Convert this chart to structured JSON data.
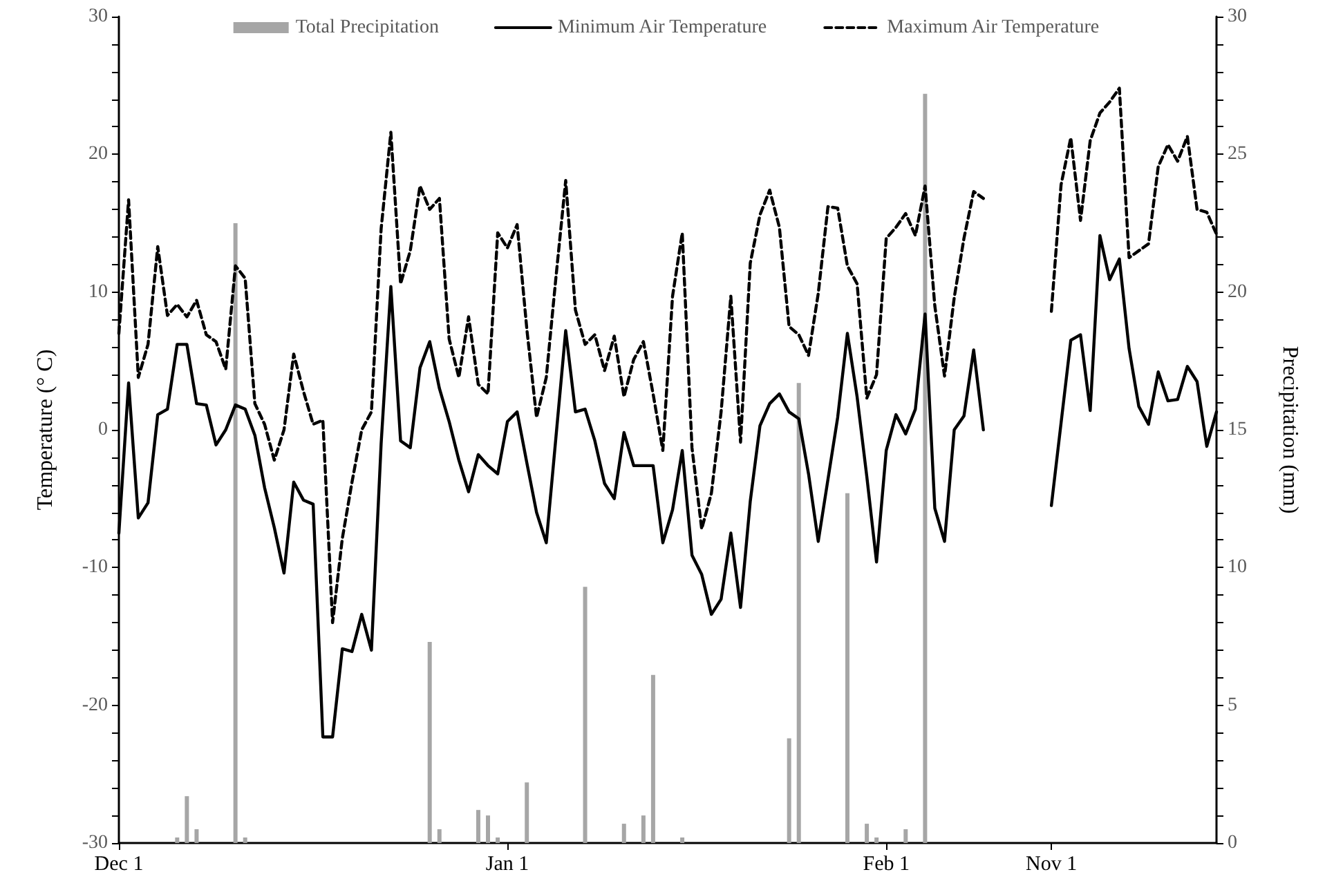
{
  "chart_data": {
    "type": "line",
    "ylabel": "Temperature (° C)",
    "y2label": "Precipitation (mm)",
    "categories": [
      "Dec 1",
      null,
      null,
      null,
      null,
      null,
      null,
      null,
      null,
      null,
      null,
      null,
      null,
      null,
      null,
      null,
      null,
      null,
      null,
      null,
      null,
      null,
      null,
      null,
      null,
      null,
      null,
      null,
      null,
      null,
      null,
      null,
      null,
      null,
      null,
      null,
      null,
      null,
      null,
      null,
      "Jan 1",
      null,
      null,
      null,
      null,
      null,
      null,
      null,
      null,
      null,
      null,
      null,
      null,
      null,
      null,
      null,
      null,
      null,
      null,
      null,
      null,
      null,
      null,
      null,
      null,
      null,
      null,
      null,
      null,
      null,
      null,
      null,
      null,
      null,
      null,
      null,
      null,
      null,
      null,
      "Feb 1",
      null,
      null,
      null,
      null,
      null,
      null,
      null,
      null,
      null,
      null,
      null,
      null,
      null,
      null,
      null,
      null,
      "Nov 1",
      null,
      null,
      null,
      null,
      null,
      null,
      null,
      null,
      null,
      null,
      null,
      null,
      null,
      null,
      null,
      null,
      null
    ],
    "series": [
      {
        "name": "Total Precipitation",
        "type": "bar",
        "axis": "y2",
        "color": "#a6a6a6",
        "values": [
          null,
          null,
          null,
          null,
          null,
          null,
          0.2,
          1.7,
          0.5,
          null,
          null,
          null,
          22.5,
          0.2,
          null,
          null,
          null,
          null,
          null,
          null,
          null,
          null,
          null,
          null,
          null,
          null,
          null,
          null,
          null,
          null,
          null,
          null,
          7.3,
          0.5,
          null,
          null,
          null,
          1.2,
          1.0,
          0.2,
          null,
          null,
          2.2,
          null,
          null,
          null,
          null,
          null,
          9.3,
          null,
          null,
          null,
          0.7,
          null,
          1.0,
          6.1,
          null,
          null,
          0.2,
          null,
          null,
          null,
          null,
          null,
          null,
          null,
          null,
          null,
          null,
          3.8,
          16.7,
          null,
          null,
          null,
          null,
          12.7,
          null,
          0.7,
          0.2,
          null,
          null,
          0.5,
          null,
          27.2,
          null,
          null,
          null,
          null,
          null,
          null,
          null,
          null,
          null,
          null,
          null,
          null,
          null,
          null,
          null,
          null,
          null,
          null,
          null,
          null,
          null,
          null,
          null,
          null,
          null,
          null,
          null,
          null,
          null,
          null
        ]
      },
      {
        "name": "Minimum Air Temperature",
        "color": "#000000",
        "line_style": "solid",
        "values": [
          -7.5,
          3.4,
          -6.4,
          -5.3,
          1.1,
          1.5,
          6.2,
          6.2,
          1.9,
          1.8,
          -1.1,
          0.0,
          1.8,
          1.5,
          -0.4,
          -4.2,
          -7.1,
          -10.4,
          -3.8,
          -5.1,
          -5.4,
          -22.3,
          -22.3,
          -15.9,
          -16.1,
          -13.4,
          -16.0,
          -1.0,
          10.4,
          -0.8,
          -1.3,
          4.5,
          6.4,
          3.0,
          0.6,
          -2.2,
          -4.5,
          -1.8,
          -2.6,
          -3.2,
          0.6,
          1.3,
          -2.4,
          -6.0,
          -8.2,
          -0.5,
          7.2,
          1.3,
          1.5,
          -0.8,
          -3.9,
          -5.0,
          -0.2,
          -2.6,
          -2.6,
          -2.6,
          -8.2,
          -5.8,
          -1.5,
          -9.1,
          -10.5,
          -13.4,
          -12.3,
          -7.5,
          -12.9,
          -5.2,
          0.3,
          1.9,
          2.6,
          1.3,
          0.8,
          -3.2,
          -8.1,
          -3.6,
          0.9,
          7.0,
          2.4,
          -3.4,
          -9.6,
          -1.5,
          1.1,
          -0.3,
          1.5,
          8.4,
          -5.7,
          -8.1,
          0.0,
          1.0,
          5.8,
          0.0,
          null,
          null,
          null,
          null,
          null,
          null,
          -5.5,
          0.5,
          6.5,
          6.9,
          1.4,
          14.1,
          10.9,
          12.4,
          5.9,
          1.7,
          0.4,
          4.2,
          2.1,
          2.2,
          4.6,
          3.5,
          -1.2,
          1.3
        ]
      },
      {
        "name": "Maximum Air Temperature",
        "color": "#000000",
        "line_style": "dashed",
        "values": [
          7.0,
          16.7,
          3.8,
          6.2,
          13.3,
          8.3,
          9.1,
          8.2,
          9.4,
          6.9,
          6.4,
          4.4,
          11.9,
          11.0,
          1.9,
          0.4,
          -2.2,
          0.0,
          5.5,
          2.8,
          0.4,
          0.7,
          -14.0,
          -7.9,
          -3.8,
          0.0,
          1.3,
          14.6,
          21.6,
          10.6,
          13.0,
          17.7,
          16.0,
          16.8,
          6.6,
          3.8,
          8.2,
          3.3,
          2.6,
          14.3,
          13.2,
          14.9,
          7.3,
          0.9,
          3.8,
          11.1,
          18.1,
          8.7,
          6.2,
          6.9,
          4.3,
          6.8,
          2.4,
          5.1,
          6.4,
          2.6,
          -1.5,
          9.7,
          14.3,
          -1.3,
          -7.2,
          -4.6,
          1.3,
          9.7,
          -0.9,
          12.1,
          15.6,
          17.4,
          14.7,
          7.5,
          6.9,
          5.4,
          9.9,
          16.2,
          16.1,
          11.9,
          10.6,
          2.3,
          4.0,
          13.9,
          14.7,
          15.7,
          14.1,
          17.7,
          9.0,
          3.9,
          9.6,
          13.9,
          17.3,
          16.8,
          null,
          null,
          null,
          null,
          null,
          null,
          8.6,
          17.8,
          21.2,
          15.2,
          21.0,
          23.0,
          23.8,
          24.8,
          12.5,
          13.0,
          13.5,
          19.1,
          20.7,
          19.5,
          21.3,
          16.0,
          15.8,
          14.2
        ]
      }
    ],
    "ylim": [
      -30,
      30
    ],
    "yticks": [
      -30,
      {
        "value": -28,
        "label": null
      },
      {
        "value": -26,
        "label": null
      },
      {
        "value": -24,
        "label": null
      },
      {
        "value": -22,
        "label": null
      },
      -20,
      {
        "value": -18,
        "label": null
      },
      {
        "value": -16,
        "label": null
      },
      {
        "value": -14,
        "label": null
      },
      {
        "value": -12,
        "label": null
      },
      -10,
      {
        "value": -8,
        "label": null
      },
      {
        "value": -6,
        "label": null
      },
      {
        "value": -4,
        "label": null
      },
      {
        "value": -2,
        "label": null
      },
      0,
      {
        "value": 2,
        "label": null
      },
      {
        "value": 4,
        "label": null
      },
      {
        "value": 6,
        "label": null
      },
      {
        "value": 8,
        "label": null
      },
      10,
      {
        "value": 12,
        "label": null
      },
      {
        "value": 14,
        "label": null
      },
      {
        "value": 16,
        "label": null
      },
      {
        "value": 18,
        "label": null
      },
      20,
      {
        "value": 22,
        "label": null
      },
      {
        "value": 24,
        "label": null
      },
      {
        "value": 26,
        "label": null
      },
      {
        "value": 28,
        "label": null
      },
      30
    ],
    "y2lim": [
      0,
      30
    ],
    "y2ticks": [
      0,
      {
        "value": 1,
        "label": null
      },
      {
        "value": 2,
        "label": null
      },
      {
        "value": 3,
        "label": null
      },
      {
        "value": 4,
        "label": null
      },
      5,
      {
        "value": 6,
        "label": null
      },
      {
        "value": 7,
        "label": null
      },
      {
        "value": 8,
        "label": null
      },
      {
        "value": 9,
        "label": null
      },
      10,
      {
        "value": 11,
        "label": null
      },
      {
        "value": 12,
        "label": null
      },
      {
        "value": 13,
        "label": null
      },
      {
        "value": 14,
        "label": null
      },
      15,
      {
        "value": 16,
        "label": null
      },
      {
        "value": 17,
        "label": null
      },
      {
        "value": 18,
        "label": null
      },
      {
        "value": 19,
        "label": null
      },
      20,
      {
        "value": 21,
        "label": null
      },
      {
        "value": 22,
        "label": null
      },
      {
        "value": 23,
        "label": null
      },
      {
        "value": 24,
        "label": null
      },
      25,
      {
        "value": 26,
        "label": null
      },
      {
        "value": 27,
        "label": null
      },
      {
        "value": 28,
        "label": null
      },
      {
        "value": 29,
        "label": null
      },
      30
    ],
    "grid": false,
    "legend": "top",
    "marker": "none"
  }
}
